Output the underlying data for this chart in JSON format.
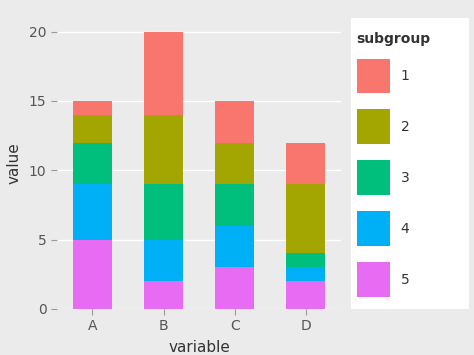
{
  "categories": [
    "A",
    "B",
    "C",
    "D"
  ],
  "subgroups_order": [
    "5",
    "4",
    "3",
    "2",
    "1"
  ],
  "seg_values": {
    "A": {
      "5": 5,
      "4": 4,
      "3": 3,
      "2": 2,
      "1": 1
    },
    "B": {
      "5": 2,
      "4": 3,
      "3": 4,
      "2": 5,
      "1": 6
    },
    "C": {
      "5": 3,
      "4": 3,
      "3": 3,
      "2": 3,
      "1": 3
    },
    "D": {
      "5": 2,
      "4": 1,
      "3": 1,
      "2": 5,
      "1": 3
    }
  },
  "colors": {
    "1": "#F8766D",
    "2": "#A3A500",
    "3": "#00BF7D",
    "4": "#00B0F6",
    "5": "#E76BF3"
  },
  "xlabel": "variable",
  "ylabel": "value",
  "legend_title": "subgroup",
  "ylim": [
    0,
    21
  ],
  "yticks": [
    0,
    5,
    10,
    15,
    20
  ],
  "panel_bg": "#EBEBEB",
  "plot_bg": "#EBEBEB",
  "legend_bg": "#F2F2F2",
  "grid_color": "#FFFFFF",
  "bar_width": 0.55
}
